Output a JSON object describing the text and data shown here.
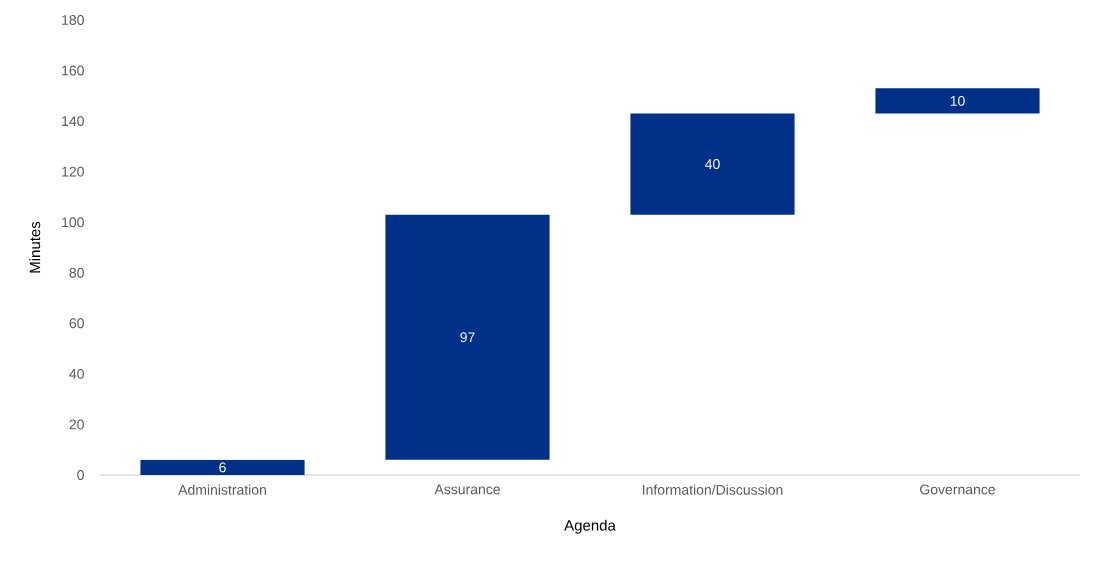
{
  "chart_data": {
    "type": "bar",
    "xlabel": "Agenda",
    "ylabel": "Minutes",
    "categories": [
      "Administration",
      "Assurance",
      "Information/Discussion",
      "Governance"
    ],
    "values": [
      6,
      97,
      40,
      10
    ],
    "base": [
      0,
      6,
      103,
      143
    ],
    "color": "#003087",
    "ylim": [
      0,
      180
    ],
    "yticks": [
      0,
      20,
      40,
      60,
      80,
      100,
      120,
      140,
      160,
      180
    ],
    "data_labels": true
  }
}
